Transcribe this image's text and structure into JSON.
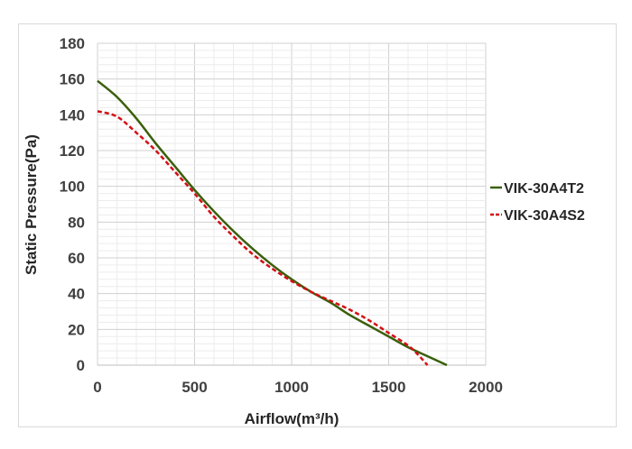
{
  "chart_data": {
    "type": "line",
    "title": "",
    "xlabel": "Airflow(m³/h)",
    "ylabel": "Static Pressure(Pa)",
    "xlim": [
      0,
      2000
    ],
    "ylim": [
      0,
      180
    ],
    "x_ticks": [
      "0",
      "500",
      "1000",
      "1500",
      "2000"
    ],
    "y_ticks": [
      "0",
      "20",
      "40",
      "60",
      "80",
      "100",
      "120",
      "140",
      "160",
      "180"
    ],
    "grid": true,
    "legend_position": "right",
    "series": [
      {
        "name": "VIK-30A4T2",
        "color": "#3a5f0b",
        "style": "solid",
        "x": [
          0,
          100,
          200,
          300,
          400,
          500,
          600,
          700,
          800,
          900,
          1000,
          1100,
          1200,
          1300,
          1400,
          1500,
          1600,
          1700,
          1800
        ],
        "y": [
          159,
          150,
          138,
          124,
          111,
          98,
          86,
          75,
          65,
          56,
          48,
          41,
          35,
          28,
          22,
          16,
          10,
          5,
          0
        ]
      },
      {
        "name": "VIK-30A4S2",
        "color": "#d40f14",
        "style": "dashed",
        "x": [
          0,
          100,
          200,
          300,
          400,
          500,
          600,
          700,
          800,
          900,
          1000,
          1100,
          1200,
          1300,
          1400,
          1500,
          1600,
          1650,
          1700
        ],
        "y": [
          142,
          139,
          130,
          120,
          108,
          96,
          83,
          72,
          62,
          54,
          47,
          41,
          36,
          31,
          25,
          18,
          11,
          6,
          0
        ]
      }
    ]
  }
}
